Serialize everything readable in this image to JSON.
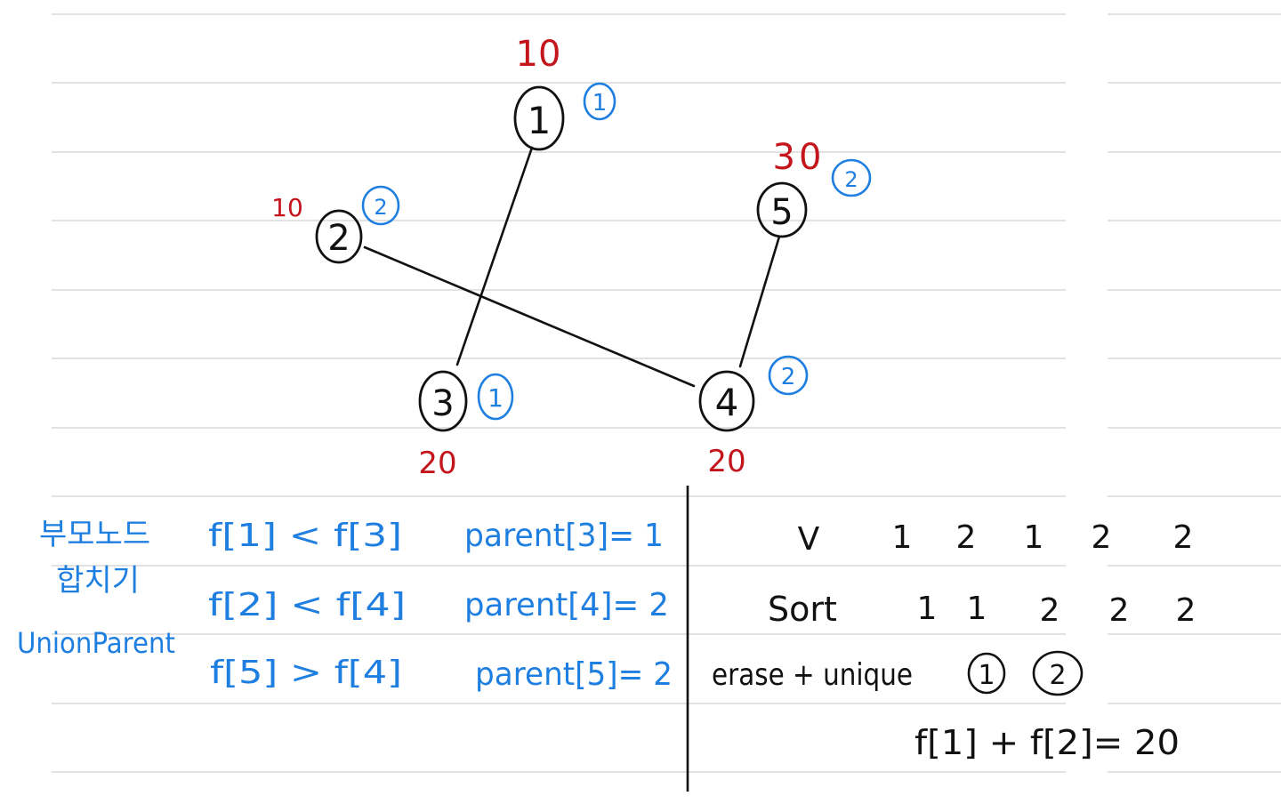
{
  "colors": {
    "ink": "#111111",
    "red": "#c4151c",
    "blue": "#1f7fe0",
    "rule": "#d9d9d9"
  },
  "graph": {
    "nodes": [
      {
        "id": "1",
        "label": "1",
        "cost": "10",
        "group": "1"
      },
      {
        "id": "2",
        "label": "2",
        "cost": "10",
        "group": "2"
      },
      {
        "id": "3",
        "label": "3",
        "cost": "20",
        "group": "1"
      },
      {
        "id": "4",
        "label": "4",
        "cost": "20",
        "group": "2"
      },
      {
        "id": "5",
        "label": "5",
        "cost": "30",
        "group": "2"
      }
    ],
    "edges": [
      {
        "from": "1",
        "to": "3"
      },
      {
        "from": "2",
        "to": "4"
      },
      {
        "from": "5",
        "to": "4"
      }
    ]
  },
  "notes": {
    "left_title": "부모노드\n합치기",
    "left_subtitle": "UnionParent",
    "comparisons": [
      "f[1] < f[3]",
      "f[2] < f[4]",
      "f[5] > f[4]"
    ],
    "assignments": [
      "parent[3]= 1",
      "parent[4]= 2",
      "parent[5]= 2"
    ]
  },
  "right": {
    "v_label": "V",
    "v_values": [
      "1",
      "2",
      "1",
      "2",
      "2"
    ],
    "sort_label": "Sort",
    "sort_values": [
      "1",
      "1",
      "2",
      "2",
      "2"
    ],
    "erase_label": "erase + unique",
    "unique_values": [
      "1",
      "2"
    ],
    "result": "f[1] + f[2]= 20"
  }
}
